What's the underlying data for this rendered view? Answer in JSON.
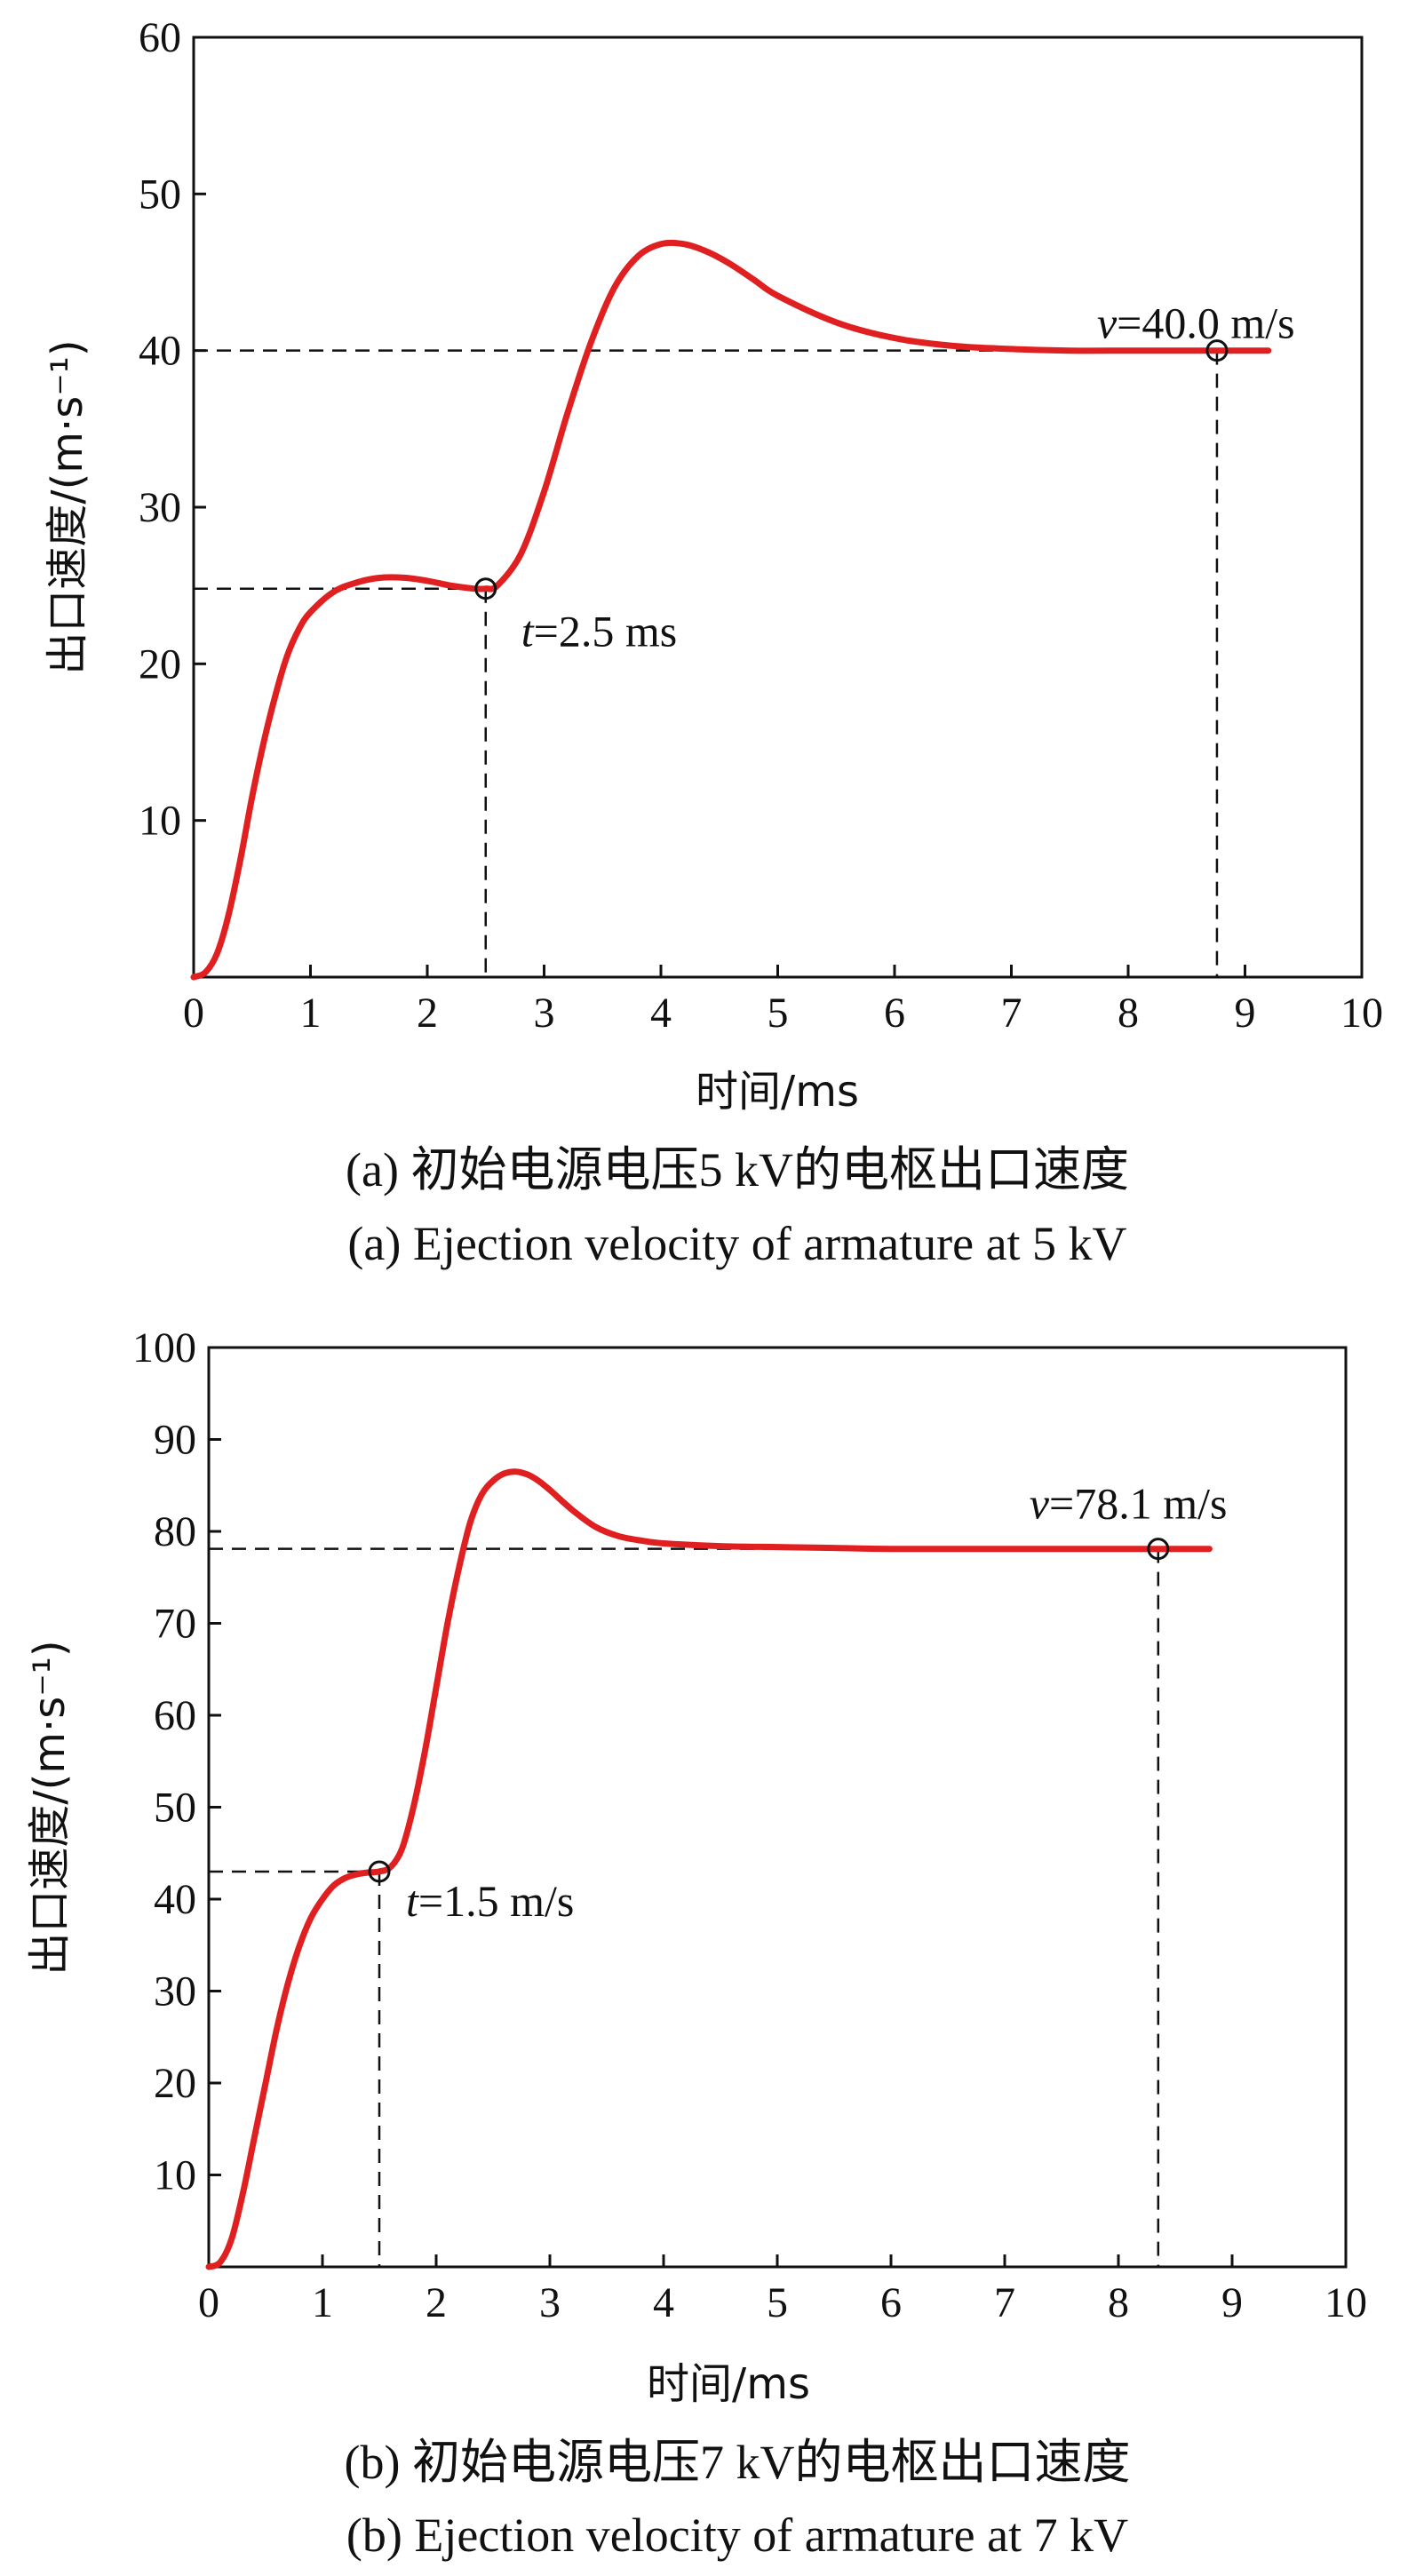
{
  "chart_data": [
    {
      "type": "line",
      "xlabel": "时间/ms",
      "ylabel": "出口速度/(m·s⁻¹)",
      "xlim": [
        0,
        10
      ],
      "ylim": [
        0,
        60
      ],
      "xticks": [
        "0",
        "1",
        "2",
        "3",
        "4",
        "5",
        "6",
        "7",
        "8",
        "9",
        "10"
      ],
      "yticks": [
        "10",
        "20",
        "30",
        "40",
        "50",
        "60"
      ],
      "grid": false,
      "series_color": "#e02020",
      "x": [
        0,
        0.1,
        0.2,
        0.3,
        0.4,
        0.5,
        0.6,
        0.7,
        0.8,
        0.9,
        1.0,
        1.2,
        1.4,
        1.6,
        1.8,
        2.0,
        2.2,
        2.4,
        2.5,
        2.6,
        2.8,
        3.0,
        3.2,
        3.4,
        3.6,
        3.8,
        4.0,
        4.2,
        4.4,
        4.6,
        4.8,
        5.0,
        5.5,
        6.0,
        6.5,
        7.0,
        7.5,
        8.0,
        8.5,
        8.76,
        9.0,
        9.2
      ],
      "y": [
        0,
        0.3,
        1.5,
        4.0,
        7.5,
        11.5,
        15.0,
        18.0,
        20.5,
        22.2,
        23.3,
        24.6,
        25.2,
        25.5,
        25.5,
        25.3,
        25.0,
        24.8,
        24.8,
        25.0,
        27.0,
        31.0,
        36.0,
        40.5,
        44.0,
        46.0,
        46.8,
        46.8,
        46.3,
        45.5,
        44.5,
        43.5,
        41.8,
        40.8,
        40.3,
        40.1,
        40.0,
        40.0,
        40.0,
        40.0,
        40.0,
        40.0
      ],
      "markers": [
        {
          "x": 2.5,
          "y": 24.8,
          "label_var": "t",
          "label_val": "=2.5 ms"
        },
        {
          "x": 8.76,
          "y": 40.0,
          "label_var": "v",
          "label_val": "=40.0 m/s"
        }
      ],
      "caption_cn": "(a) 初始电源电压5 kV的电枢出口速度",
      "caption_en": "(a) Ejection velocity of armature at 5 kV"
    },
    {
      "type": "line",
      "xlabel": "时间/ms",
      "ylabel": "出口速度/(m·s⁻¹)",
      "xlim": [
        0,
        10
      ],
      "ylim": [
        0,
        100
      ],
      "xticks": [
        "0",
        "1",
        "2",
        "3",
        "4",
        "5",
        "6",
        "7",
        "8",
        "9",
        "10"
      ],
      "yticks": [
        "10",
        "20",
        "30",
        "40",
        "50",
        "60",
        "70",
        "80",
        "90",
        "100"
      ],
      "grid": false,
      "series_color": "#e02020",
      "x": [
        0,
        0.1,
        0.2,
        0.3,
        0.4,
        0.5,
        0.6,
        0.7,
        0.8,
        0.9,
        1.0,
        1.1,
        1.2,
        1.3,
        1.4,
        1.5,
        1.6,
        1.7,
        1.8,
        1.9,
        2.0,
        2.1,
        2.2,
        2.3,
        2.4,
        2.5,
        2.6,
        2.7,
        2.8,
        2.9,
        3.0,
        3.2,
        3.4,
        3.6,
        3.8,
        4.0,
        4.5,
        5.0,
        5.5,
        6.0,
        7.0,
        8.0,
        8.35,
        8.8
      ],
      "y": [
        0,
        0.5,
        3.0,
        8.0,
        14.0,
        20.0,
        26.0,
        31.0,
        35.0,
        38.0,
        40.0,
        41.5,
        42.3,
        42.7,
        42.9,
        43.0,
        43.5,
        45.5,
        50.0,
        56.0,
        63.0,
        70.0,
        76.0,
        81.0,
        84.0,
        85.5,
        86.3,
        86.5,
        86.2,
        85.5,
        84.5,
        82.3,
        80.5,
        79.5,
        79.0,
        78.7,
        78.4,
        78.3,
        78.2,
        78.1,
        78.1,
        78.1,
        78.1,
        78.1
      ],
      "markers": [
        {
          "x": 1.5,
          "y": 43.0,
          "label_var": "t",
          "label_val": "=1.5 m/s"
        },
        {
          "x": 8.35,
          "y": 78.1,
          "label_var": "v",
          "label_val": "=78.1 m/s"
        }
      ],
      "caption_cn": "(b) 初始电源电压7 kV的电枢出口速度",
      "caption_en": "(b) Ejection velocity of armature at 7 kV"
    }
  ]
}
